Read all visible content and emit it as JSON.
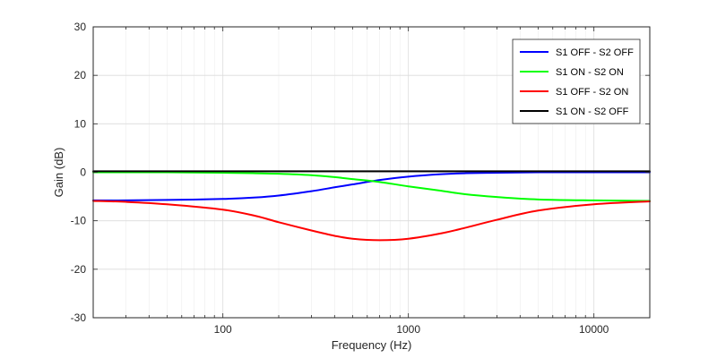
{
  "chart_data": {
    "type": "line",
    "title": "",
    "xlabel": "Frequency (Hz)",
    "ylabel": "Gain (dB)",
    "x_scale": "log",
    "xlim": [
      20,
      20000
    ],
    "ylim": [
      -30,
      30
    ],
    "x_ticks": [
      100,
      1000,
      10000
    ],
    "x_tick_labels": [
      "100",
      "1000",
      "10000"
    ],
    "y_ticks": [
      -30,
      -20,
      -10,
      0,
      10,
      20,
      30
    ],
    "y_tick_labels": [
      "-30",
      "-20",
      "-10",
      "0",
      "10",
      "20",
      "30"
    ],
    "grid": true,
    "legend_position": "top-right",
    "x": [
      20,
      30,
      50,
      100,
      150,
      200,
      300,
      400,
      500,
      700,
      1000,
      1500,
      2000,
      3000,
      5000,
      10000,
      20000
    ],
    "series": [
      {
        "name": "S1 OFF - S2 OFF",
        "color": "#0000ff",
        "values": [
          -5.8,
          -5.8,
          -5.7,
          -5.5,
          -5.2,
          -4.8,
          -3.9,
          -3.1,
          -2.5,
          -1.6,
          -0.9,
          -0.4,
          -0.2,
          -0.1,
          0.0,
          0.0,
          0.0
        ]
      },
      {
        "name": "S1 ON - S2 ON",
        "color": "#00ff00",
        "values": [
          0.0,
          0.0,
          0.0,
          -0.1,
          -0.2,
          -0.3,
          -0.6,
          -1.0,
          -1.4,
          -2.0,
          -2.9,
          -3.8,
          -4.5,
          -5.1,
          -5.6,
          -5.8,
          -5.9
        ]
      },
      {
        "name": "S1 OFF - S2 ON",
        "color": "#ff0000",
        "values": [
          -5.9,
          -6.1,
          -6.6,
          -7.7,
          -9.0,
          -10.3,
          -12.0,
          -13.1,
          -13.7,
          -14.0,
          -13.7,
          -12.6,
          -11.5,
          -9.8,
          -7.9,
          -6.6,
          -6.0
        ]
      },
      {
        "name": "S1 ON - S2 OFF",
        "color": "#000000",
        "values": [
          0.2,
          0.2,
          0.2,
          0.2,
          0.2,
          0.2,
          0.2,
          0.2,
          0.2,
          0.2,
          0.2,
          0.2,
          0.2,
          0.2,
          0.2,
          0.2,
          0.2
        ]
      }
    ]
  }
}
